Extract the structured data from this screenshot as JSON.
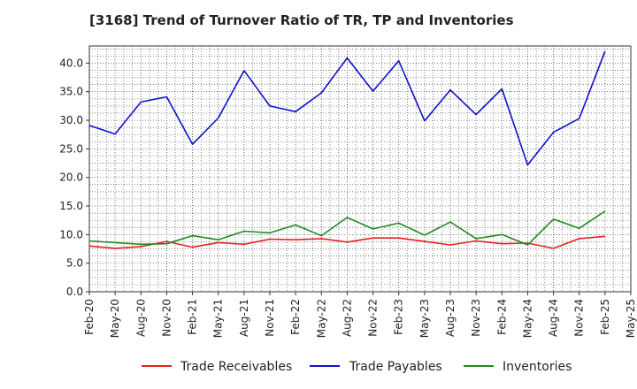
{
  "chart_data": {
    "type": "line",
    "title": "[3168]  Trend of Turnover Ratio of TR, TP and Inventories",
    "xlabel": "",
    "ylabel": "",
    "ylim": [
      0,
      43
    ],
    "yticks": [
      "0.0",
      "5.0",
      "10.0",
      "15.0",
      "20.0",
      "25.0",
      "30.0",
      "35.0",
      "40.0"
    ],
    "ytick_values": [
      0,
      5,
      10,
      15,
      20,
      25,
      30,
      35,
      40
    ],
    "x_tick_labels": [
      "Feb-20",
      "May-20",
      "Aug-20",
      "Nov-20",
      "Feb-21",
      "May-21",
      "Aug-21",
      "Nov-21",
      "Feb-22",
      "May-22",
      "Aug-22",
      "Nov-22",
      "Feb-23",
      "May-23",
      "Aug-23",
      "Nov-23",
      "Feb-24",
      "May-24",
      "Aug-24",
      "Nov-24",
      "Feb-25",
      "May-25"
    ],
    "x": [
      "Feb-20",
      "May-20",
      "Aug-20",
      "Nov-20",
      "Feb-21",
      "May-21",
      "Aug-21",
      "Nov-21",
      "Feb-22",
      "May-22",
      "Aug-22",
      "Nov-22",
      "Feb-23",
      "May-23",
      "Aug-23",
      "Nov-23",
      "Feb-24",
      "May-24",
      "Aug-24",
      "Nov-24",
      "Feb-25"
    ],
    "grid": true,
    "legend_position": "bottom",
    "series": [
      {
        "name": "Trade Receivables",
        "color": "#e8201f",
        "values": [
          8.0,
          7.6,
          7.9,
          8.8,
          7.8,
          8.6,
          8.3,
          9.2,
          9.1,
          9.3,
          8.7,
          9.4,
          9.4,
          8.8,
          8.2,
          8.9,
          8.4,
          8.5,
          7.6,
          9.3,
          9.7
        ]
      },
      {
        "name": "Trade Payables",
        "color": "#0f12cc",
        "values": [
          29.1,
          27.6,
          33.2,
          34.1,
          25.8,
          30.4,
          38.7,
          32.5,
          31.5,
          34.8,
          40.9,
          35.1,
          40.4,
          29.9,
          35.3,
          31.0,
          35.5,
          22.2,
          27.9,
          30.3,
          42.1
        ]
      },
      {
        "name": "Inventories",
        "color": "#228b22",
        "values": [
          8.9,
          8.6,
          8.3,
          8.4,
          9.8,
          9.1,
          10.6,
          10.3,
          11.7,
          9.8,
          13.0,
          11.0,
          12.0,
          9.9,
          12.2,
          9.3,
          10.0,
          8.2,
          12.7,
          11.1,
          14.1
        ]
      }
    ]
  }
}
